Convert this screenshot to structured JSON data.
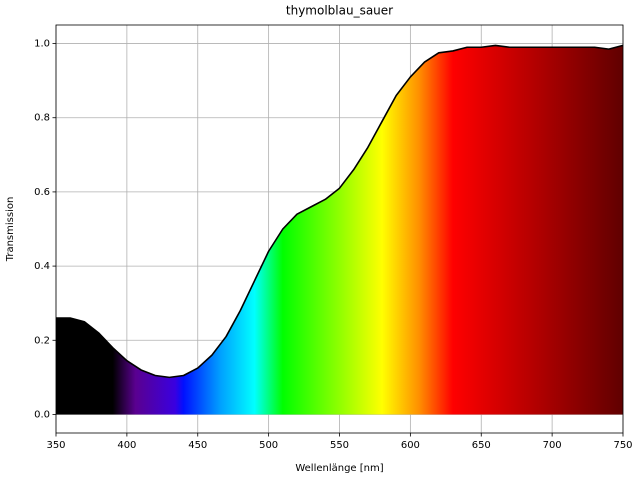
{
  "chart_data": {
    "type": "area-line",
    "title": "thymolblau_sauer",
    "x_label": "Wellenlänge [nm]",
    "y_label": "Transmission",
    "x": [
      350,
      360,
      370,
      380,
      390,
      400,
      410,
      420,
      430,
      440,
      450,
      460,
      470,
      480,
      490,
      500,
      510,
      520,
      530,
      540,
      550,
      560,
      570,
      580,
      590,
      600,
      610,
      620,
      630,
      640,
      650,
      660,
      670,
      680,
      690,
      700,
      710,
      720,
      730,
      740,
      750
    ],
    "values": [
      0.26,
      0.26,
      0.25,
      0.22,
      0.18,
      0.145,
      0.12,
      0.105,
      0.1,
      0.105,
      0.125,
      0.16,
      0.21,
      0.28,
      0.36,
      0.44,
      0.5,
      0.54,
      0.56,
      0.58,
      0.61,
      0.66,
      0.72,
      0.79,
      0.86,
      0.91,
      0.95,
      0.975,
      0.98,
      0.99,
      0.99,
      0.995,
      0.99,
      0.99,
      0.99,
      0.99,
      0.99,
      0.99,
      0.99,
      0.985,
      0.995
    ],
    "color": "#000000",
    "xlim": [
      350,
      750
    ],
    "ylim": [
      -0.05,
      1.05
    ],
    "xticks": [
      350,
      400,
      450,
      500,
      550,
      600,
      650,
      700,
      750
    ],
    "yticks": [
      {
        "value": 0,
        "label": "0.0"
      },
      0.2,
      0.4,
      0.6,
      0.8,
      {
        "value": 1,
        "label": "1.0"
      }
    ],
    "grid": true
  }
}
